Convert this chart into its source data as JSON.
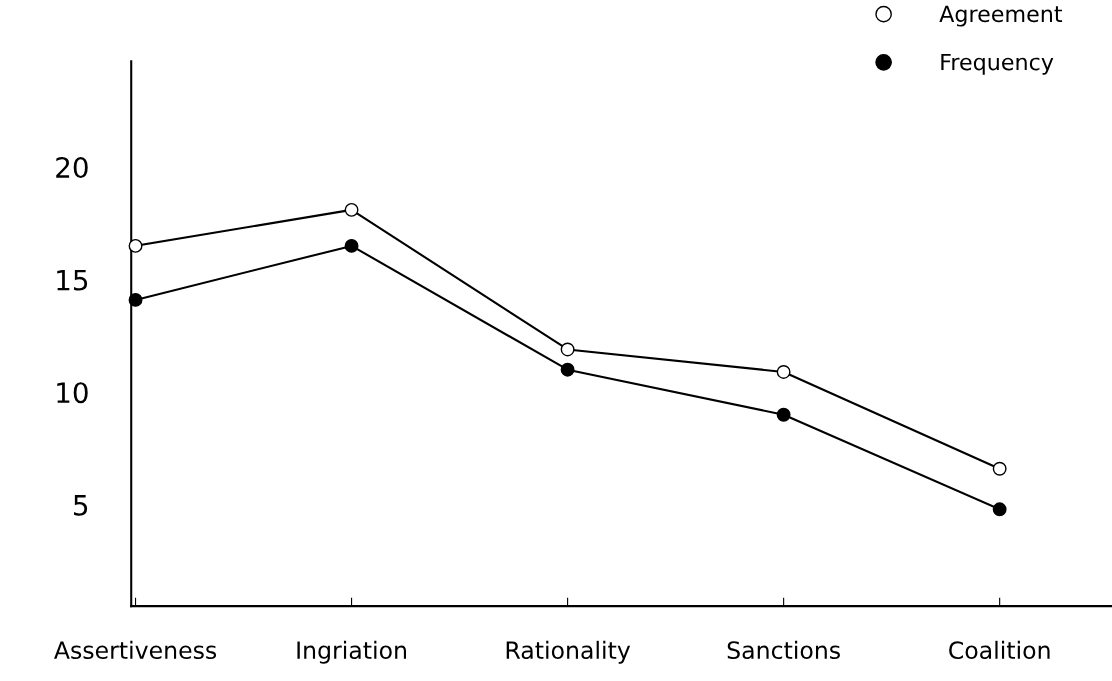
{
  "chart_data": {
    "type": "line",
    "categories": [
      "Assertiveness",
      "Ingriation",
      "Rationality",
      "Sanctions",
      "Coalition"
    ],
    "series": [
      {
        "name": "Agreement",
        "color": "#000000",
        "values": [
          16.5,
          18.1,
          11.9,
          10.9,
          6.6
        ]
      },
      {
        "name": "Frequency",
        "color": "#000000",
        "values": [
          14.1,
          16.5,
          11.0,
          9.0,
          4.8
        ]
      }
    ],
    "ylim": [
      0.5,
      24.7
    ],
    "yticks": [
      5,
      10,
      15,
      20
    ],
    "grid": false,
    "legend": "top right",
    "marker": "circle",
    "line_style": "solid"
  }
}
